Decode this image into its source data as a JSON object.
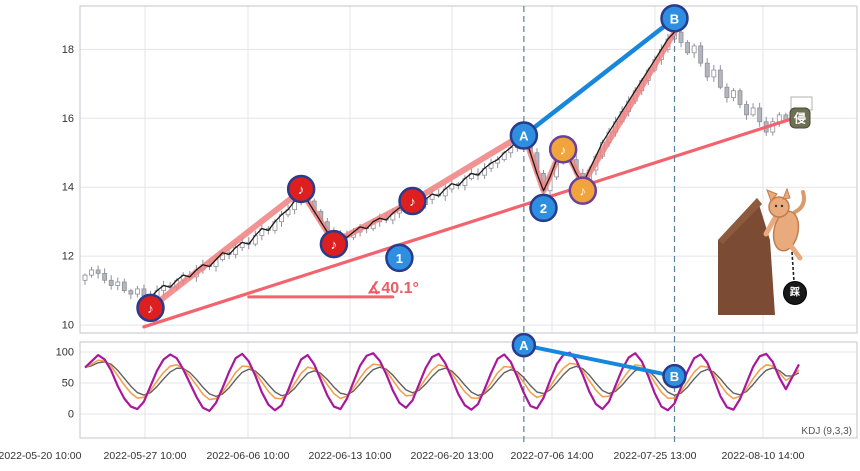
{
  "colors": {
    "background": "#ffffff",
    "grid": "#e4e4ea",
    "panel_border": "#c6c6cc",
    "trend_pink": "#f2636e",
    "zigzag_salmon": "#f08080",
    "zigzag_black": "#1a1a1a",
    "ab_blue": "#1787dc",
    "event_dash": "#5e8296",
    "marker_red": "#de1f1f",
    "marker_blue": "#2e8fe0",
    "marker_orange": "#f2a43c",
    "marker_ring_navy": "#2a3a8c",
    "marker_ring_purple": "#6a3fa0",
    "kdj_j_purple": "#a8189c",
    "kdj_k_orange": "#f2a050",
    "kdj_d_gray": "#606060",
    "candle_up": "#ffffff",
    "candle_down": "#b5b5bd",
    "candle_stroke": "#90909a"
  },
  "chart_data": {
    "type": "candlestick",
    "title": "",
    "ylim_main": [
      9.8,
      19.2
    ],
    "y_ticks_main": [
      18,
      16,
      14,
      12,
      10
    ],
    "x_tick_labels": [
      "2022-05-20 10:00",
      "2022-05-27 10:00",
      "2022-06-06 10:00",
      "2022-06-13 10:00",
      "2022-06-20 13:00",
      "2022-07-06 14:00",
      "2022-07-25 13:00",
      "2022-08-10 14:00"
    ],
    "closes": [
      11.45,
      11.6,
      11.5,
      11.3,
      11.15,
      11.25,
      11.0,
      10.9,
      11.05,
      10.85,
      10.8,
      11.0,
      11.15,
      11.1,
      11.3,
      11.45,
      11.4,
      11.6,
      11.75,
      11.7,
      11.9,
      12.1,
      12.05,
      12.25,
      12.4,
      12.35,
      12.6,
      12.8,
      12.75,
      13.0,
      13.2,
      13.35,
      13.6,
      13.85,
      13.6,
      13.3,
      13.0,
      12.7,
      12.45,
      12.6,
      12.55,
      12.7,
      12.85,
      12.8,
      13.0,
      13.1,
      13.05,
      13.25,
      13.4,
      13.5,
      13.6,
      13.5,
      13.65,
      13.8,
      13.75,
      13.95,
      14.1,
      14.05,
      14.25,
      14.4,
      14.35,
      14.55,
      14.7,
      14.8,
      15.0,
      15.15,
      15.35,
      15.55,
      15.0,
      14.4,
      13.9,
      14.3,
      14.8,
      15.2,
      14.8,
      14.4,
      14.1,
      14.5,
      14.9,
      15.3,
      15.6,
      15.9,
      16.2,
      16.5,
      16.8,
      17.1,
      17.4,
      17.7,
      18.0,
      18.3,
      18.5,
      18.2,
      17.9,
      18.1,
      17.6,
      17.2,
      17.4,
      16.9,
      16.6,
      16.8,
      16.4,
      16.1,
      16.3,
      15.9,
      15.6,
      15.9,
      16.1,
      15.95,
      16.2,
      16.3
    ],
    "zigzag_pivots": [
      [
        10,
        10.5
      ],
      [
        33,
        13.9
      ],
      [
        38,
        12.4
      ],
      [
        50,
        13.6
      ],
      [
        67,
        15.55
      ],
      [
        70,
        13.9
      ],
      [
        73,
        15.2
      ],
      [
        76,
        14.1
      ],
      [
        90,
        18.5
      ]
    ],
    "trendline_support": {
      "from": [
        9,
        9.95
      ],
      "to": [
        109,
        16.05
      ]
    },
    "angle_line": {
      "price": 10.82,
      "from_i": 25,
      "to_i": 47
    },
    "angle_label": "∡40.1°",
    "ab_line_main": {
      "from": [
        67,
        15.5
      ],
      "to": [
        90,
        18.9
      ]
    },
    "ab_line_kdj": {
      "from": [
        67,
        111
      ],
      "to": [
        90,
        61
      ]
    },
    "event_lines_i": [
      67,
      90
    ],
    "markers_main": [
      {
        "kind": "red-note",
        "i": 10,
        "price": 10.5,
        "glyph": "♪"
      },
      {
        "kind": "red-note",
        "i": 33,
        "price": 13.95,
        "glyph": "♪"
      },
      {
        "kind": "red-note",
        "i": 38,
        "price": 12.35,
        "glyph": "♪"
      },
      {
        "kind": "red-note",
        "i": 50,
        "price": 13.6,
        "glyph": "♪"
      },
      {
        "kind": "blue-label",
        "i": 48,
        "price": 11.95,
        "glyph": "1"
      },
      {
        "kind": "blue-label",
        "i": 70,
        "price": 13.4,
        "glyph": "2"
      },
      {
        "kind": "blue-label",
        "i": 67,
        "price": 15.5,
        "glyph": "A"
      },
      {
        "kind": "blue-label",
        "i": 90,
        "price": 18.9,
        "glyph": "B"
      },
      {
        "kind": "orange-note",
        "i": 73,
        "price": 15.1,
        "glyph": "♪"
      },
      {
        "kind": "orange-note",
        "i": 76,
        "price": 13.9,
        "glyph": "♪"
      }
    ],
    "markers_kdj": [
      {
        "kind": "blue-label",
        "i": 67,
        "value": 111,
        "glyph": "A"
      },
      {
        "kind": "blue-label",
        "i": 90,
        "value": 61,
        "glyph": "B"
      }
    ],
    "kdj": {
      "label": "KDJ (9,3,3)",
      "y_ticks": [
        100,
        50,
        0
      ],
      "j": [
        75,
        85,
        95,
        88,
        70,
        45,
        25,
        12,
        8,
        20,
        45,
        70,
        88,
        96,
        90,
        72,
        50,
        28,
        10,
        5,
        18,
        42,
        68,
        90,
        97,
        85,
        62,
        35,
        15,
        6,
        14,
        38,
        65,
        88,
        95,
        80,
        55,
        30,
        12,
        8,
        25,
        52,
        78,
        94,
        98,
        86,
        64,
        38,
        18,
        10,
        22,
        48,
        74,
        92,
        97,
        82,
        58,
        32,
        14,
        7,
        16,
        40,
        66,
        89,
        96,
        84,
        60,
        34,
        13,
        9,
        26,
        54,
        80,
        95,
        99,
        87,
        63,
        36,
        16,
        8,
        20,
        46,
        72,
        91,
        98,
        85,
        61,
        33,
        12,
        6,
        17,
        43,
        69,
        90,
        96,
        83,
        57,
        29,
        11,
        7,
        24,
        50,
        76,
        93,
        97,
        84,
        59,
        40,
        60,
        80
      ]
    },
    "badge": {
      "char": "侵"
    },
    "illustration": {
      "ball_char": "踩"
    }
  }
}
